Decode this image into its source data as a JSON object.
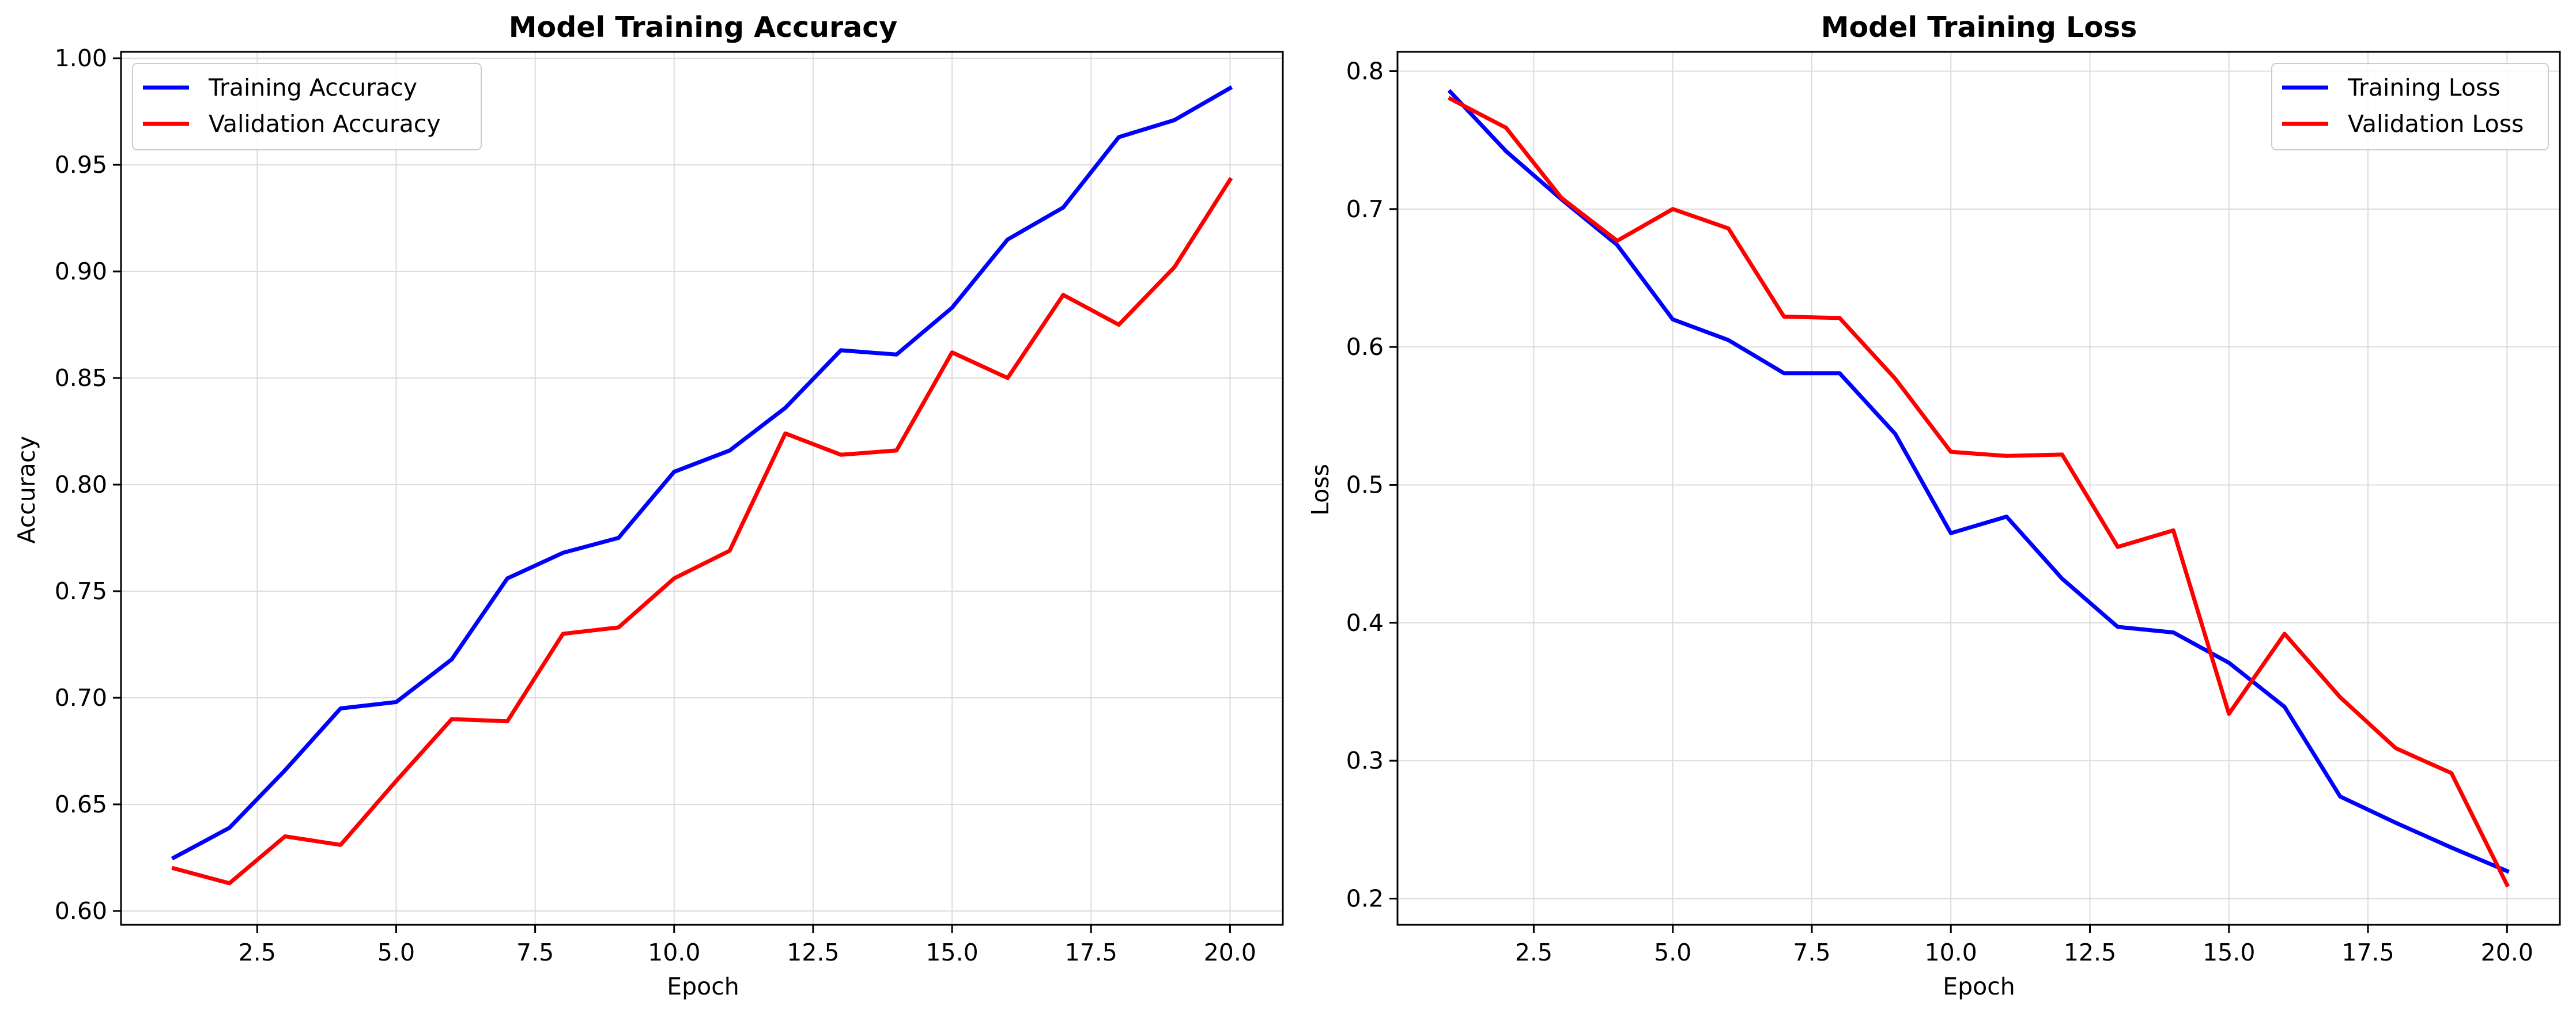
{
  "chart_data": [
    {
      "type": "line",
      "title": "Model Training Accuracy",
      "xlabel": "Epoch",
      "ylabel": "Accuracy",
      "xlim": [
        0.05,
        20.95
      ],
      "ylim": [
        0.5935,
        1.003
      ],
      "xticks": [
        2.5,
        5.0,
        7.5,
        10.0,
        12.5,
        15.0,
        17.5,
        20.0
      ],
      "xtick_labels": [
        "2.5",
        "5.0",
        "7.5",
        "10.0",
        "12.5",
        "15.0",
        "17.5",
        "20.0"
      ],
      "yticks": [
        0.6,
        0.65,
        0.7,
        0.75,
        0.8,
        0.85,
        0.9,
        0.95,
        1.0
      ],
      "ytick_labels": [
        "0.60",
        "0.65",
        "0.70",
        "0.75",
        "0.80",
        "0.85",
        "0.90",
        "0.95",
        "1.00"
      ],
      "grid": true,
      "legend_position": "top-left",
      "x": [
        1,
        2,
        3,
        4,
        5,
        6,
        7,
        8,
        9,
        10,
        11,
        12,
        13,
        14,
        15,
        16,
        17,
        18,
        19,
        20
      ],
      "series": [
        {
          "name": "Training Accuracy",
          "color": "#0000ff",
          "values": [
            0.625,
            0.639,
            0.666,
            0.695,
            0.698,
            0.718,
            0.756,
            0.768,
            0.775,
            0.806,
            0.816,
            0.836,
            0.863,
            0.861,
            0.883,
            0.915,
            0.93,
            0.963,
            0.971,
            0.986
          ]
        },
        {
          "name": "Validation Accuracy",
          "color": "#ff0000",
          "values": [
            0.62,
            0.613,
            0.635,
            0.631,
            0.661,
            0.69,
            0.689,
            0.73,
            0.733,
            0.756,
            0.769,
            0.824,
            0.814,
            0.816,
            0.862,
            0.85,
            0.889,
            0.875,
            0.902,
            0.943
          ]
        }
      ]
    },
    {
      "type": "line",
      "title": "Model Training Loss",
      "xlabel": "Epoch",
      "ylabel": "Loss",
      "xlim": [
        0.05,
        20.95
      ],
      "ylim": [
        0.181,
        0.814
      ],
      "xticks": [
        2.5,
        5.0,
        7.5,
        10.0,
        12.5,
        15.0,
        17.5,
        20.0
      ],
      "xtick_labels": [
        "2.5",
        "5.0",
        "7.5",
        "10.0",
        "12.5",
        "15.0",
        "17.5",
        "20.0"
      ],
      "yticks": [
        0.2,
        0.3,
        0.4,
        0.5,
        0.6,
        0.7,
        0.8
      ],
      "ytick_labels": [
        "0.2",
        "0.3",
        "0.4",
        "0.5",
        "0.6",
        "0.7",
        "0.8"
      ],
      "grid": true,
      "legend_position": "top-right",
      "x": [
        1,
        2,
        3,
        4,
        5,
        6,
        7,
        8,
        9,
        10,
        11,
        12,
        13,
        14,
        15,
        16,
        17,
        18,
        19,
        20
      ],
      "series": [
        {
          "name": "Training Loss",
          "color": "#0000ff",
          "values": [
            0.785,
            0.742,
            0.707,
            0.674,
            0.62,
            0.605,
            0.581,
            0.581,
            0.537,
            0.465,
            0.477,
            0.432,
            0.397,
            0.393,
            0.371,
            0.339,
            0.274,
            0.255,
            0.237,
            0.22
          ]
        },
        {
          "name": "Validation Loss",
          "color": "#ff0000",
          "values": [
            0.78,
            0.759,
            0.708,
            0.677,
            0.7,
            0.686,
            0.622,
            0.621,
            0.577,
            0.524,
            0.521,
            0.522,
            0.455,
            0.467,
            0.334,
            0.392,
            0.346,
            0.309,
            0.291,
            0.21
          ]
        }
      ]
    }
  ]
}
